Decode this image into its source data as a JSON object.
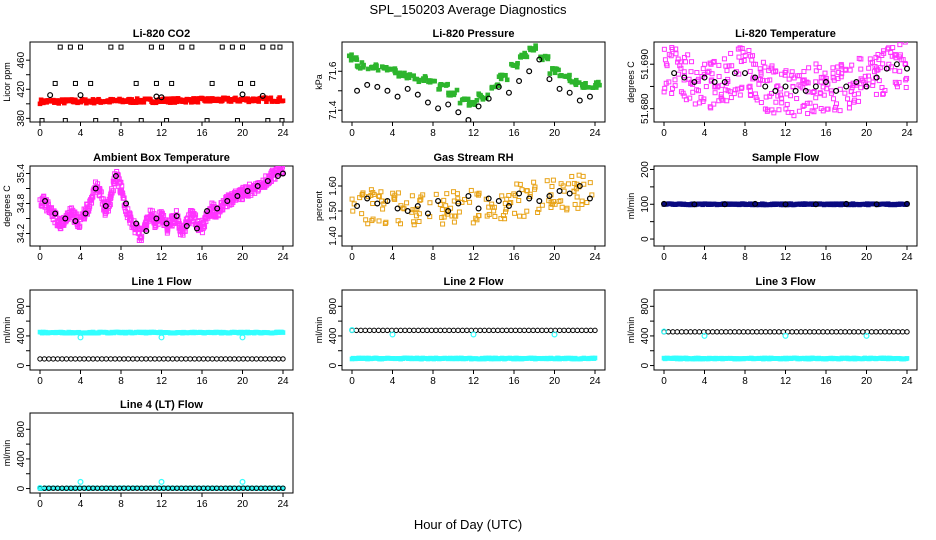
{
  "page": {
    "title": "SPL_150203  Average Diagnostics",
    "x_caption": "Hour of Day (UTC)"
  },
  "colors": {
    "black": "#000000",
    "red": "#ff0000",
    "green": "#2db52d",
    "magenta": "#ff33ff",
    "orange": "#e8a317",
    "navy": "#0a0a80",
    "cyan": "#33ffff"
  },
  "chart_data": [
    {
      "type": "scatter",
      "title": "Li-820 CO2",
      "xlabel": "",
      "ylabel": "Licor ppm",
      "xlim": [
        0,
        24
      ],
      "ylim": [
        375,
        485
      ],
      "xticks": [
        0,
        4,
        8,
        12,
        16,
        20,
        24
      ],
      "yticks": [
        380,
        400,
        420,
        440,
        460
      ],
      "ytick_labels": [
        "380",
        "",
        "420",
        "",
        "460"
      ],
      "series": [
        {
          "color": "#000000",
          "marker": "square",
          "x": [
            2,
            3,
            4,
            7,
            8,
            11,
            12,
            14,
            15,
            18,
            19,
            20,
            22,
            23,
            23.7,
            1.5,
            5,
            9.5,
            13,
            17,
            21,
            0.2,
            2.5,
            5.5,
            7.5,
            10,
            12.5,
            16.5,
            19.5,
            22.5,
            23.9,
            3.5,
            11.5,
            19.8
          ],
          "y": [
            478,
            478,
            478,
            478,
            478,
            478,
            478,
            478,
            478,
            478,
            478,
            478,
            478,
            478,
            478,
            428,
            428,
            428,
            428,
            428,
            428,
            377,
            377,
            377,
            377,
            377,
            377,
            377,
            377,
            377,
            377,
            428,
            428,
            428
          ]
        },
        {
          "color": "#ff0000",
          "marker": "band",
          "x": [
            0,
            24
          ],
          "y": [
            403,
            406
          ],
          "spread": 3
        },
        {
          "color": "#000000",
          "marker": "circle",
          "x": [
            1,
            4,
            11.5,
            12,
            20,
            22
          ],
          "y": [
            412,
            412,
            410,
            409,
            413,
            411
          ]
        }
      ]
    },
    {
      "type": "scatter",
      "title": "Li-820 Pressure",
      "xlabel": "",
      "ylabel": "kPa",
      "xlim": [
        0,
        24
      ],
      "ylim": [
        71.34,
        71.75
      ],
      "xticks": [
        0,
        4,
        8,
        12,
        16,
        20,
        24
      ],
      "yticks": [
        71.4,
        71.5,
        71.6
      ],
      "ytick_labels": [
        "71.4",
        "",
        "71.6"
      ],
      "series": [
        {
          "color": "#2db52d",
          "marker": "square",
          "x": [
            0,
            1,
            2,
            3,
            4,
            5,
            6,
            7,
            8,
            9,
            10,
            11,
            12,
            13,
            14,
            15,
            16,
            17,
            18,
            19,
            20,
            21,
            22,
            23,
            24
          ],
          "y": [
            71.67,
            71.63,
            71.62,
            71.61,
            71.6,
            71.58,
            71.57,
            71.56,
            71.54,
            71.52,
            71.49,
            71.45,
            71.44,
            71.47,
            71.52,
            71.57,
            71.63,
            71.68,
            71.72,
            71.67,
            71.6,
            71.57,
            71.54,
            71.53,
            71.53
          ]
        },
        {
          "color": "#000000",
          "marker": "circle",
          "x": [
            0.5,
            1.5,
            2.5,
            3.5,
            4.5,
            5.5,
            6.5,
            7.5,
            8.5,
            9.5,
            10.5,
            11.5,
            12.5,
            13.5,
            14.5,
            15.5,
            16.5,
            17.5,
            18.5,
            19.5,
            20.5,
            21.5,
            22.5,
            23.5
          ],
          "y": [
            71.5,
            71.53,
            71.52,
            71.5,
            71.47,
            71.51,
            71.48,
            71.44,
            71.41,
            71.43,
            71.39,
            71.35,
            71.42,
            71.46,
            71.52,
            71.49,
            71.55,
            71.6,
            71.66,
            71.56,
            71.51,
            71.49,
            71.45,
            71.47
          ]
        }
      ]
    },
    {
      "type": "scatter",
      "title": "Li-820 Temperature",
      "xlabel": "",
      "ylabel": "degrees C",
      "xlim": [
        0,
        24
      ],
      "ylim": [
        51.677,
        51.695
      ],
      "xticks": [
        0,
        4,
        8,
        12,
        16,
        20,
        24
      ],
      "yticks": [
        51.68,
        51.685,
        51.69
      ],
      "ytick_labels": [
        "51.680",
        "",
        "51.690"
      ],
      "series": [
        {
          "color": "#ff33ff",
          "marker": "square",
          "x": [
            0,
            1,
            2,
            3,
            4,
            5,
            6,
            7,
            8,
            9,
            10,
            11,
            12,
            13,
            14,
            15,
            16,
            17,
            18,
            19,
            20,
            21,
            22,
            23,
            24
          ],
          "y": [
            51.688,
            51.689,
            51.687,
            51.686,
            51.685,
            51.686,
            51.687,
            51.688,
            51.689,
            51.688,
            51.685,
            51.684,
            51.684,
            51.683,
            51.684,
            51.685,
            51.685,
            51.684,
            51.685,
            51.686,
            51.686,
            51.688,
            51.689,
            51.69,
            51.69
          ],
          "spread": 0.0055
        },
        {
          "color": "#000000",
          "marker": "circle",
          "x": [
            1,
            2,
            3,
            4,
            5,
            6,
            7,
            8,
            9,
            10,
            11,
            12,
            13,
            14,
            15,
            16,
            17,
            18,
            19,
            20,
            21,
            22,
            23,
            24
          ],
          "y": [
            51.688,
            51.687,
            51.686,
            51.687,
            51.686,
            51.686,
            51.688,
            51.688,
            51.687,
            51.685,
            51.684,
            51.685,
            51.684,
            51.684,
            51.685,
            51.686,
            51.684,
            51.685,
            51.686,
            51.685,
            51.687,
            51.689,
            51.69,
            51.689
          ]
        }
      ]
    },
    {
      "type": "scatter",
      "title": "Ambient Box Temperature",
      "xlabel": "",
      "ylabel": "degrees C",
      "xlim": [
        0,
        24
      ],
      "ylim": [
        33.95,
        35.55
      ],
      "xticks": [
        0,
        4,
        8,
        12,
        16,
        20,
        24
      ],
      "yticks": [
        34.2,
        34.5,
        34.8,
        35.1,
        35.4
      ],
      "ytick_labels": [
        "34.2",
        "",
        "34.8",
        "",
        "35.4"
      ],
      "series": [
        {
          "color": "#ff33ff",
          "marker": "square",
          "x": [
            0,
            0.5,
            1,
            1.5,
            2,
            2.5,
            3,
            3.5,
            4,
            4.5,
            5,
            5.5,
            6,
            6.5,
            7,
            7.5,
            8,
            8.5,
            9,
            9.5,
            10,
            10.5,
            11,
            11.5,
            12,
            12.5,
            13,
            13.5,
            14,
            14.5,
            15,
            15.5,
            16,
            16.5,
            17,
            17.5,
            18,
            18.5,
            19,
            19.5,
            20,
            20.5,
            21,
            21.5,
            22,
            22.5,
            23,
            23.5,
            24
          ],
          "y": [
            34.9,
            34.8,
            34.7,
            34.5,
            34.4,
            34.5,
            34.65,
            34.5,
            34.4,
            34.65,
            34.8,
            35.15,
            35.0,
            34.6,
            34.9,
            35.4,
            35.1,
            34.7,
            34.45,
            34.3,
            34.1,
            34.4,
            34.65,
            34.35,
            34.6,
            34.3,
            34.45,
            34.55,
            34.2,
            34.4,
            34.6,
            34.4,
            34.3,
            34.6,
            34.7,
            34.6,
            34.75,
            34.85,
            34.9,
            34.95,
            35.0,
            35.05,
            35.1,
            35.15,
            35.2,
            35.3,
            35.35,
            35.45,
            35.45
          ],
          "spread": 0.12
        },
        {
          "color": "#000000",
          "marker": "circle",
          "x": [
            0.5,
            1.5,
            2.5,
            3.5,
            4.5,
            5.5,
            6.5,
            7.5,
            8.5,
            9.5,
            10.5,
            11.5,
            12.5,
            13.5,
            14.5,
            15.5,
            16.5,
            17.5,
            18.5,
            19.5,
            20.5,
            21.5,
            22.5,
            23.5,
            24
          ],
          "y": [
            34.85,
            34.6,
            34.5,
            34.45,
            34.6,
            35.1,
            34.75,
            35.35,
            34.8,
            34.4,
            34.25,
            34.5,
            34.4,
            34.55,
            34.35,
            34.3,
            34.65,
            34.7,
            34.85,
            34.95,
            35.05,
            35.15,
            35.25,
            35.35,
            35.4
          ]
        }
      ]
    },
    {
      "type": "scatter",
      "title": "Gas Stream RH",
      "xlabel": "",
      "ylabel": "percent",
      "xlim": [
        0,
        24
      ],
      "ylim": [
        1.36,
        1.68
      ],
      "xticks": [
        0,
        4,
        8,
        12,
        16,
        20,
        24
      ],
      "yticks": [
        1.4,
        1.5,
        1.6
      ],
      "ytick_labels": [
        "1.40",
        "1.50",
        "1.60"
      ],
      "series": [
        {
          "color": "#e8a317",
          "marker": "square",
          "x": [
            0,
            2,
            4,
            6,
            8,
            10,
            12,
            14,
            16,
            18,
            20,
            22,
            24
          ],
          "y": [
            1.5,
            1.52,
            1.51,
            1.5,
            1.5,
            1.51,
            1.52,
            1.53,
            1.54,
            1.55,
            1.56,
            1.58,
            1.58
          ],
          "spread": 0.07
        },
        {
          "color": "#000000",
          "marker": "circle",
          "x": [
            0.5,
            1.5,
            2.5,
            3.5,
            4.5,
            5.5,
            6.5,
            7.5,
            8.5,
            9.5,
            10.5,
            11.5,
            12.5,
            13.5,
            14.5,
            15.5,
            16.5,
            17.5,
            18.5,
            19.5,
            20.5,
            21.5,
            22.5,
            23.5
          ],
          "y": [
            1.52,
            1.55,
            1.53,
            1.54,
            1.51,
            1.5,
            1.52,
            1.49,
            1.54,
            1.5,
            1.53,
            1.56,
            1.51,
            1.55,
            1.54,
            1.52,
            1.57,
            1.55,
            1.54,
            1.56,
            1.58,
            1.57,
            1.6,
            1.55
          ]
        }
      ]
    },
    {
      "type": "scatter",
      "title": "Sample Flow",
      "xlabel": "",
      "ylabel": "ml/min",
      "xlim": [
        0,
        24
      ],
      "ylim": [
        -20,
        210
      ],
      "xticks": [
        0,
        4,
        8,
        12,
        16,
        20,
        24
      ],
      "yticks": [
        0,
        50,
        100,
        150,
        200
      ],
      "ytick_labels": [
        "0",
        "",
        "100",
        "",
        "200"
      ],
      "series": [
        {
          "color": "#0a0a80",
          "marker": "band",
          "x": [
            0,
            24
          ],
          "y": [
            100,
            100
          ],
          "spread": 2
        },
        {
          "color": "#000000",
          "marker": "circle",
          "x": [
            0,
            3,
            6,
            9,
            12,
            15,
            18,
            21,
            24
          ],
          "y": [
            101,
            100,
            100,
            101,
            100,
            100,
            101,
            100,
            101
          ]
        }
      ]
    },
    {
      "type": "scatter",
      "title": "Line 1 Flow",
      "xlabel": "",
      "ylabel": "ml/min",
      "xlim": [
        0,
        24
      ],
      "ylim": [
        -60,
        1020
      ],
      "xticks": [
        0,
        4,
        8,
        12,
        16,
        20,
        24
      ],
      "yticks": [
        0,
        200,
        400,
        600,
        800
      ],
      "ytick_labels": [
        "0",
        "",
        "400",
        "",
        "800"
      ],
      "series": [
        {
          "color": "#33ffff",
          "marker": "band",
          "x": [
            0,
            24
          ],
          "y": [
            445,
            445
          ],
          "spread": 8
        },
        {
          "color": "#000000",
          "marker": "chain",
          "x": [
            0,
            24
          ],
          "y": [
            90,
            90
          ]
        },
        {
          "color": "#33ffff",
          "marker": "circle",
          "x": [
            4,
            12,
            20
          ],
          "y": [
            380,
            380,
            380
          ]
        }
      ]
    },
    {
      "type": "scatter",
      "title": "Line 2 Flow",
      "xlabel": "",
      "ylabel": "ml/min",
      "xlim": [
        0,
        24
      ],
      "ylim": [
        -60,
        1020
      ],
      "xticks": [
        0,
        4,
        8,
        12,
        16,
        20,
        24
      ],
      "yticks": [
        0,
        200,
        400,
        600,
        800
      ],
      "ytick_labels": [
        "0",
        "",
        "400",
        "",
        "800"
      ],
      "series": [
        {
          "color": "#33ffff",
          "marker": "band",
          "x": [
            0,
            24
          ],
          "y": [
            95,
            95
          ],
          "spread": 8
        },
        {
          "color": "#000000",
          "marker": "chain",
          "x": [
            0,
            24
          ],
          "y": [
            475,
            475
          ]
        },
        {
          "color": "#33ffff",
          "marker": "circle",
          "x": [
            0,
            4,
            12,
            20
          ],
          "y": [
            480,
            420,
            420,
            420
          ]
        }
      ]
    },
    {
      "type": "scatter",
      "title": "Line 3 Flow",
      "xlabel": "",
      "ylabel": "ml/min",
      "xlim": [
        0,
        24
      ],
      "ylim": [
        -60,
        1020
      ],
      "xticks": [
        0,
        4,
        8,
        12,
        16,
        20,
        24
      ],
      "yticks": [
        0,
        200,
        400,
        600,
        800
      ],
      "ytick_labels": [
        "0",
        "",
        "400",
        "",
        "800"
      ],
      "series": [
        {
          "color": "#33ffff",
          "marker": "band",
          "x": [
            0,
            24
          ],
          "y": [
            95,
            95
          ],
          "spread": 8
        },
        {
          "color": "#000000",
          "marker": "chain",
          "x": [
            0,
            24
          ],
          "y": [
            455,
            455
          ]
        },
        {
          "color": "#33ffff",
          "marker": "circle",
          "x": [
            0,
            4,
            12,
            20
          ],
          "y": [
            460,
            400,
            400,
            400
          ]
        }
      ]
    },
    {
      "type": "scatter",
      "title": "Line 4 (LT) Flow",
      "xlabel": "",
      "ylabel": "ml/min",
      "xlim": [
        0,
        24
      ],
      "ylim": [
        -60,
        1020
      ],
      "xticks": [
        0,
        4,
        8,
        12,
        16,
        20,
        24
      ],
      "yticks": [
        0,
        200,
        400,
        600,
        800
      ],
      "ytick_labels": [
        "0",
        "",
        "400",
        "",
        "800"
      ],
      "series": [
        {
          "color": "#33ffff",
          "marker": "band",
          "x": [
            0,
            24
          ],
          "y": [
            5,
            5
          ],
          "spread": 6
        },
        {
          "color": "#000000",
          "marker": "chain",
          "x": [
            0,
            24
          ],
          "y": [
            5,
            5
          ]
        },
        {
          "color": "#33ffff",
          "marker": "circle",
          "x": [
            0,
            4,
            12,
            20
          ],
          "y": [
            10,
            90,
            90,
            90
          ]
        }
      ]
    }
  ]
}
